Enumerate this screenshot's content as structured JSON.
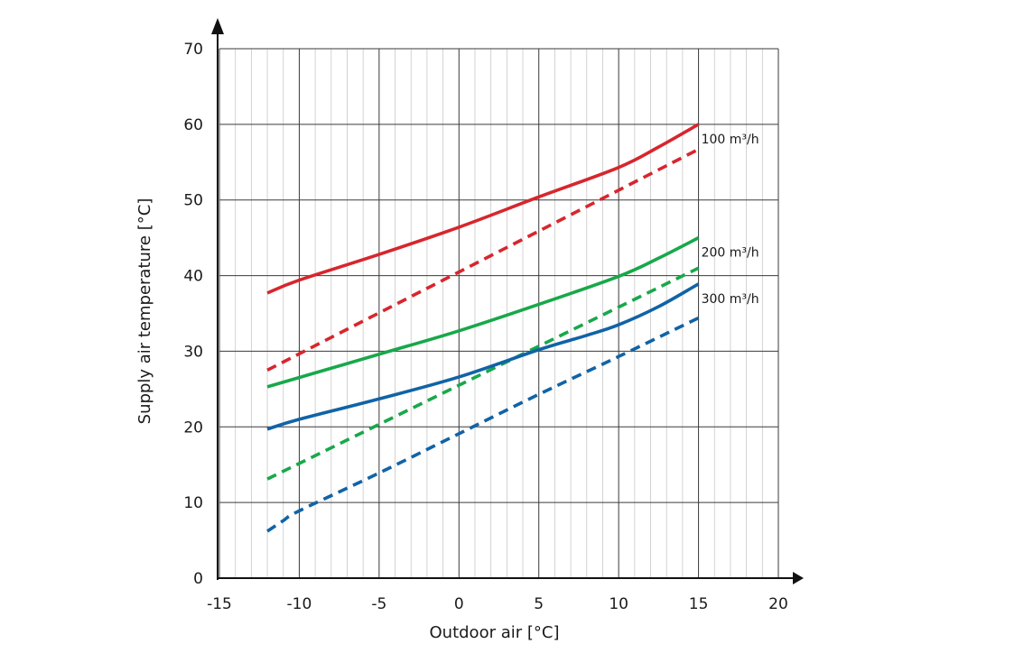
{
  "chart_data": {
    "type": "line",
    "xlabel": "Outdoor air [°C]",
    "ylabel": "Supply air temperature [°C]",
    "xlim": [
      -15,
      20
    ],
    "ylim": [
      0,
      70
    ],
    "x_ticks": [
      -15,
      -10,
      -5,
      0,
      5,
      10,
      15,
      20
    ],
    "y_ticks": [
      0,
      10,
      20,
      30,
      40,
      50,
      60,
      70
    ],
    "x_tick_labels": [
      "-15",
      "-10",
      "-5",
      "0",
      "5",
      "10",
      "15",
      "20"
    ],
    "y_tick_labels": [
      "0",
      "10",
      "20",
      "30",
      "40",
      "50",
      "60",
      "70"
    ],
    "grid": true,
    "series": [
      {
        "name": "100 m³/h",
        "color": "#d7262d",
        "style": "solid",
        "x": [
          -12,
          -10,
          -5,
          0,
          5,
          10,
          12.5,
          15
        ],
        "y": [
          37.7,
          39.4,
          42.8,
          46.4,
          50.4,
          54.3,
          57.0,
          60.0
        ]
      },
      {
        "color": "#d7262d",
        "style": "dashed",
        "x": [
          -12,
          15
        ],
        "y": [
          27.5,
          56.7
        ]
      },
      {
        "name": "200 m³/h",
        "color": "#18a84a",
        "style": "solid",
        "x": [
          -12,
          -5,
          0,
          5,
          10,
          12.5,
          15
        ],
        "y": [
          25.3,
          29.6,
          32.7,
          36.2,
          39.9,
          42.3,
          45.0
        ]
      },
      {
        "color": "#18a84a",
        "style": "dashed",
        "x": [
          -12,
          15
        ],
        "y": [
          13.1,
          41.0
        ]
      },
      {
        "name": "300 m³/h",
        "color": "#1163a6",
        "style": "solid",
        "x": [
          -12,
          -10,
          -5,
          0,
          5,
          8,
          10,
          12.5,
          15
        ],
        "y": [
          19.7,
          21.0,
          23.7,
          26.6,
          30.2,
          32.1,
          33.5,
          35.9,
          38.9
        ]
      },
      {
        "color": "#1163a6",
        "style": "dashed",
        "x": [
          -12,
          -11,
          -10,
          -5,
          0,
          5,
          10,
          15
        ],
        "y": [
          6.2,
          7.6,
          8.9,
          13.9,
          19.1,
          24.3,
          29.3,
          34.4
        ]
      }
    ]
  }
}
